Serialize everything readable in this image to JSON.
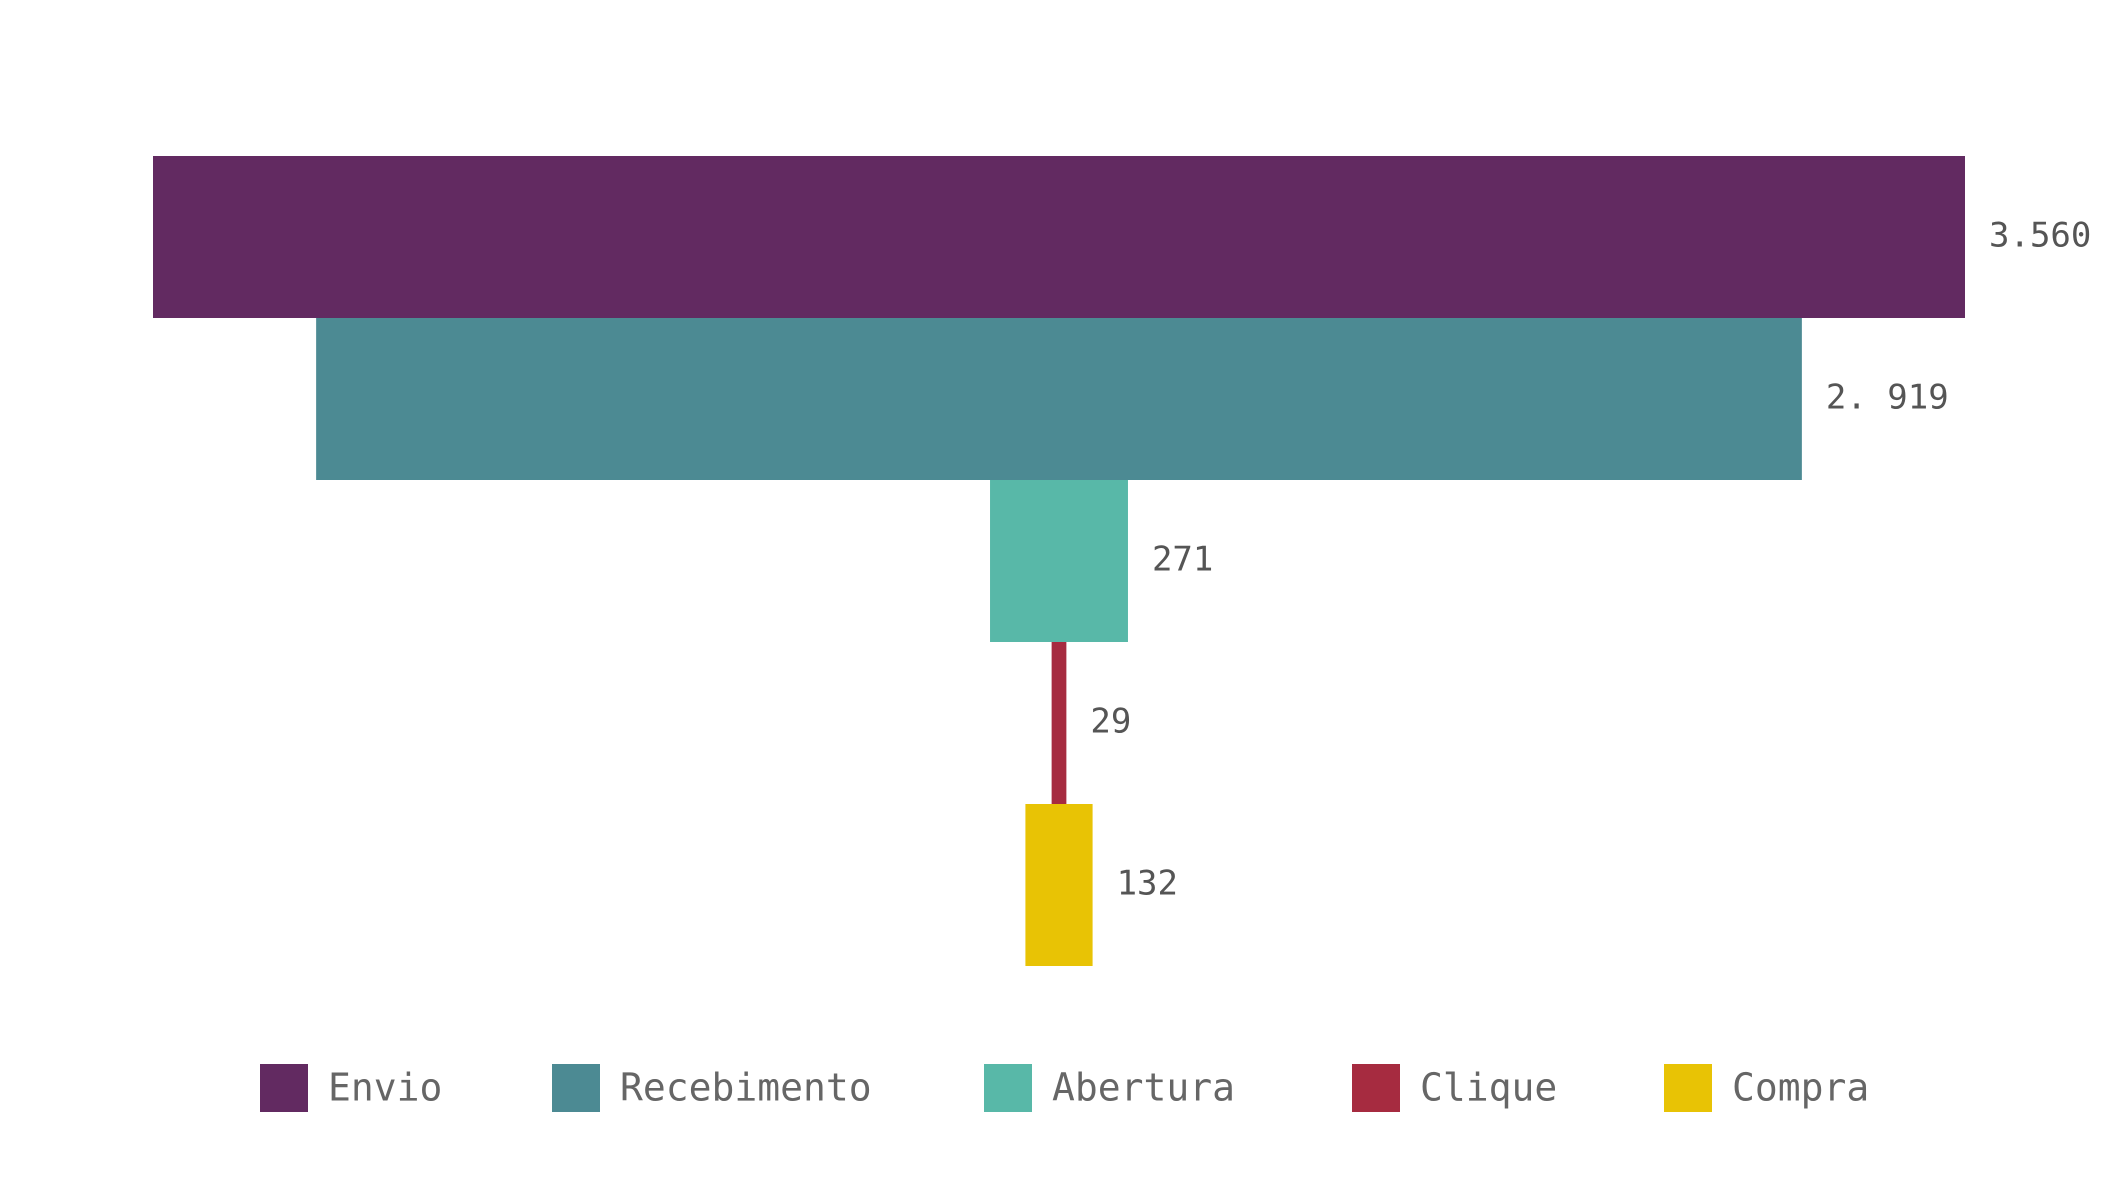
{
  "chart_data": {
    "type": "bar",
    "subtype": "funnel",
    "categories": [
      "Envio",
      "Recebimento",
      "Abertura",
      "Clique",
      "Compra"
    ],
    "values": [
      3560,
      2919,
      271,
      29,
      132
    ],
    "value_labels": [
      "3.560",
      "2. 919",
      "271",
      "29",
      "132"
    ],
    "colors": [
      "#622A61",
      "#4C8A93",
      "#58B8A8",
      "#A62B40",
      "#E8C305"
    ],
    "legend": {
      "position": "bottom",
      "entries": [
        "Envio",
        "Recebimento",
        "Abertura",
        "Clique",
        "Compra"
      ]
    },
    "grid": false,
    "axes": false
  }
}
